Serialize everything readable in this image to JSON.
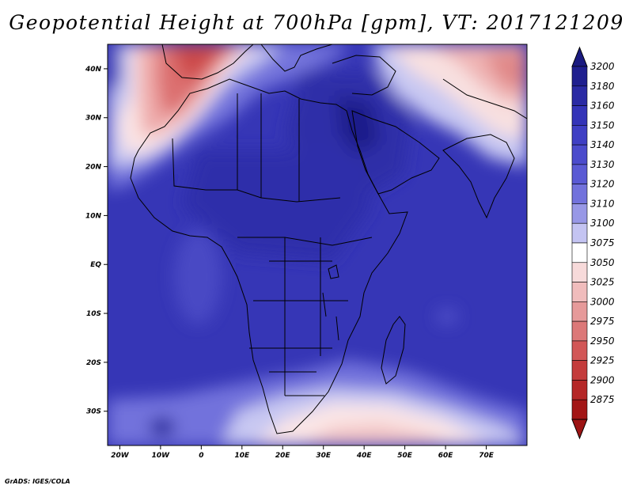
{
  "title": "Geopotential Height at 700hPa [gpm], VT: 2017121209",
  "credit": "GrADS: IGES/COLA",
  "lon_ticks": [
    "20W",
    "10W",
    "0",
    "10E",
    "20E",
    "30E",
    "40E",
    "50E",
    "60E",
    "70E"
  ],
  "lat_ticks": [
    "40N",
    "30N",
    "20N",
    "10N",
    "EQ",
    "10S",
    "20S",
    "30S"
  ],
  "colorbar": {
    "levels": [
      "3200",
      "3180",
      "3160",
      "3150",
      "3140",
      "3130",
      "3120",
      "3110",
      "3100",
      "3075",
      "3050",
      "3025",
      "3000",
      "2975",
      "2950",
      "2925",
      "2900",
      "2875"
    ],
    "colors": [
      "#1f1f8f",
      "#2a2aa4",
      "#3434b8",
      "#3f3fc4",
      "#4b4bcc",
      "#5a5ad4",
      "#7272dc",
      "#9898e6",
      "#c4c4f2",
      "#ffffff",
      "#f7dada",
      "#f0bcbc",
      "#e69a9a",
      "#dc7878",
      "#d25757",
      "#c43c3c",
      "#b52727",
      "#a31616"
    ],
    "top_arrow_color": "#1a1a80",
    "bottom_arrow_color": "#9c1414"
  },
  "map": {
    "background_color": "#3636b6",
    "domain_lon": [
      -23,
      80
    ],
    "domain_lat": [
      -37,
      45
    ]
  }
}
